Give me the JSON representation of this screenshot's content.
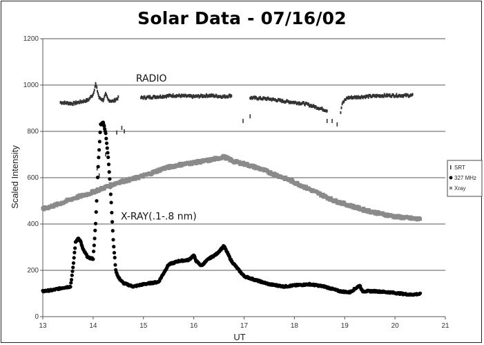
{
  "chart_data": {
    "type": "scatter",
    "title": "Solar Data - 07/16/02",
    "xlabel": "UT",
    "ylabel": "Scaled Intensity",
    "xlim": [
      13,
      21
    ],
    "ylim": [
      0,
      1200
    ],
    "x_ticks": [
      13,
      14,
      15,
      16,
      17,
      18,
      19,
      20,
      21
    ],
    "y_ticks": [
      0,
      200,
      400,
      600,
      800,
      1000,
      1200
    ],
    "grid": "horizontal",
    "legend_position": "right",
    "annotations": [
      {
        "text": "RADIO",
        "x": 14.85,
        "y": 1015
      },
      {
        "text": "X-RAY(.1-.8 nm)",
        "x": 14.55,
        "y": 420
      }
    ],
    "series": [
      {
        "name": "SRT",
        "color": "#333333",
        "marker": "tick",
        "segments": [
          [
            [
              13.35,
              925
            ],
            [
              13.6,
              920
            ],
            [
              13.9,
              935
            ],
            [
              14.0,
              960
            ],
            [
              14.05,
              1005
            ],
            [
              14.12,
              945
            ],
            [
              14.2,
              935
            ],
            [
              14.25,
              960
            ],
            [
              14.3,
              935
            ],
            [
              14.4,
              930
            ],
            [
              14.5,
              945
            ]
          ],
          [
            [
              14.95,
              945
            ],
            [
              15.3,
              950
            ],
            [
              15.6,
              955
            ],
            [
              16.0,
              950
            ],
            [
              16.3,
              955
            ],
            [
              16.6,
              950
            ],
            [
              16.75,
              955
            ]
          ],
          [
            [
              17.12,
              945
            ],
            [
              17.5,
              940
            ],
            [
              17.8,
              930
            ],
            [
              18.2,
              920
            ],
            [
              18.5,
              900
            ],
            [
              18.65,
              890
            ]
          ],
          [
            [
              18.92,
              885
            ],
            [
              18.95,
              920
            ],
            [
              19.05,
              945
            ],
            [
              19.4,
              950
            ],
            [
              19.8,
              955
            ],
            [
              20.2,
              955
            ],
            [
              20.35,
              955
            ]
          ]
        ],
        "points": [
          [
            14.47,
            795
          ],
          [
            14.57,
            815
          ],
          [
            14.62,
            800
          ],
          [
            16.98,
            845
          ],
          [
            17.12,
            865
          ],
          [
            18.65,
            845
          ],
          [
            18.75,
            845
          ],
          [
            18.85,
            830
          ],
          [
            14.08,
            640
          ],
          [
            14.12,
            610
          ],
          [
            14.25,
            700
          ]
        ]
      },
      {
        "name": "327 MHz",
        "color": "#000000",
        "marker": "circle",
        "points": [
          [
            13.0,
            110
          ],
          [
            13.2,
            115
          ],
          [
            13.4,
            125
          ],
          [
            13.55,
            130
          ],
          [
            13.6,
            210
          ],
          [
            13.65,
            320
          ],
          [
            13.7,
            340
          ],
          [
            13.75,
            325
          ],
          [
            13.8,
            290
          ],
          [
            13.9,
            255
          ],
          [
            14.0,
            250
          ],
          [
            14.05,
            400
          ],
          [
            14.1,
            650
          ],
          [
            14.15,
            830
          ],
          [
            14.2,
            840
          ],
          [
            14.25,
            790
          ],
          [
            14.3,
            690
          ],
          [
            14.35,
            530
          ],
          [
            14.4,
            330
          ],
          [
            14.45,
            200
          ],
          [
            14.5,
            170
          ],
          [
            14.6,
            145
          ],
          [
            14.8,
            130
          ],
          [
            15.0,
            140
          ],
          [
            15.3,
            150
          ],
          [
            15.5,
            225
          ],
          [
            15.7,
            240
          ],
          [
            15.9,
            245
          ],
          [
            16.0,
            265
          ],
          [
            16.05,
            240
          ],
          [
            16.15,
            220
          ],
          [
            16.3,
            250
          ],
          [
            16.45,
            270
          ],
          [
            16.6,
            305
          ],
          [
            16.75,
            240
          ],
          [
            16.9,
            200
          ],
          [
            17.0,
            175
          ],
          [
            17.2,
            160
          ],
          [
            17.5,
            140
          ],
          [
            17.8,
            130
          ],
          [
            18.0,
            135
          ],
          [
            18.3,
            140
          ],
          [
            18.6,
            130
          ],
          [
            18.9,
            110
          ],
          [
            19.1,
            105
          ],
          [
            19.3,
            135
          ],
          [
            19.35,
            110
          ],
          [
            19.6,
            110
          ],
          [
            19.9,
            105
          ],
          [
            20.1,
            100
          ],
          [
            20.3,
            95
          ],
          [
            20.5,
            98
          ]
        ]
      },
      {
        "name": "Xray",
        "color": "#8a8a8a",
        "marker": "square",
        "points": [
          [
            13.0,
            465
          ],
          [
            13.3,
            485
          ],
          [
            13.6,
            510
          ],
          [
            13.9,
            530
          ],
          [
            14.2,
            555
          ],
          [
            14.5,
            580
          ],
          [
            14.8,
            595
          ],
          [
            15.1,
            615
          ],
          [
            15.4,
            640
          ],
          [
            15.7,
            655
          ],
          [
            16.0,
            665
          ],
          [
            16.3,
            675
          ],
          [
            16.6,
            690
          ],
          [
            16.8,
            670
          ],
          [
            17.0,
            660
          ],
          [
            17.3,
            640
          ],
          [
            17.6,
            615
          ],
          [
            17.9,
            590
          ],
          [
            18.2,
            560
          ],
          [
            18.5,
            530
          ],
          [
            18.8,
            500
          ],
          [
            19.1,
            480
          ],
          [
            19.4,
            460
          ],
          [
            19.7,
            445
          ],
          [
            20.0,
            432
          ],
          [
            20.3,
            425
          ],
          [
            20.5,
            420
          ]
        ]
      }
    ]
  }
}
